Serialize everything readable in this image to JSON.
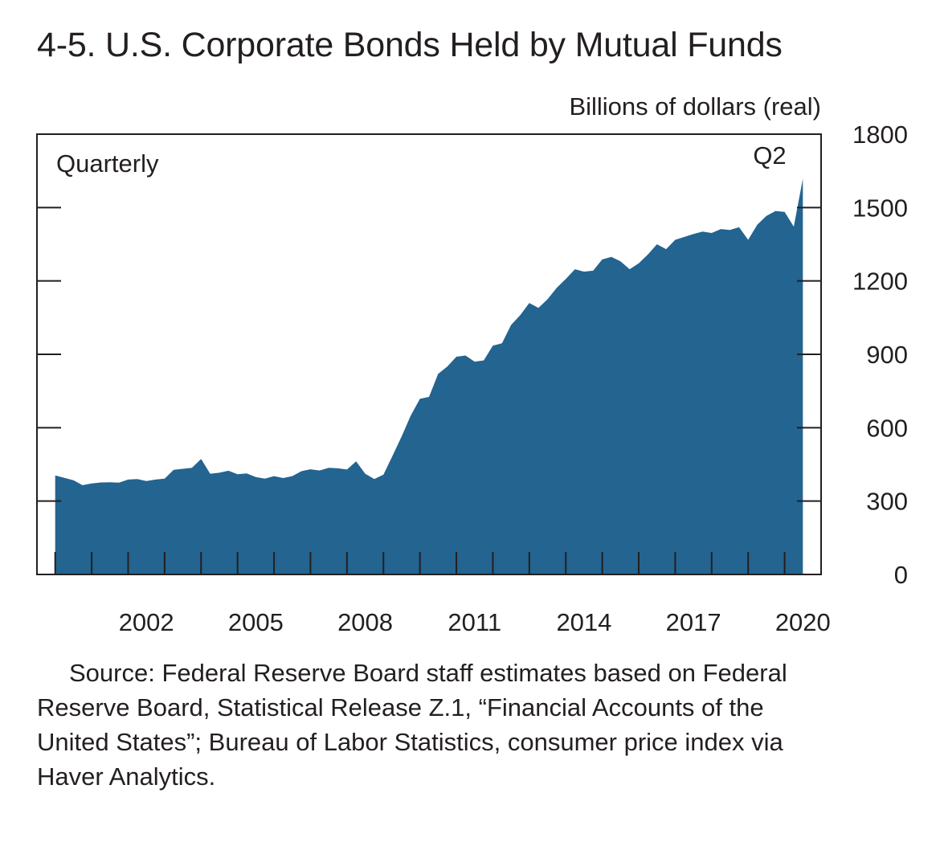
{
  "title": "4-5. U.S. Corporate Bonds Held by Mutual Funds",
  "source": "Source: Federal Reserve Board staff estimates based on Federal Reserve Board, Statistical Release Z.1, “Financial Accounts of the United States”; Bureau of Labor Statistics, consumer price index via Haver Analytics.",
  "colors": {
    "area": "#236490",
    "axis": "#231f20",
    "text": "#231f20"
  },
  "chart_data": {
    "type": "area",
    "ylabel": "Billions of dollars (real)",
    "frequency_label": "Quarterly",
    "end_label": "Q2",
    "ylim": [
      0,
      1800
    ],
    "yticks": [
      0,
      300,
      600,
      900,
      1200,
      1500,
      1800
    ],
    "xlim": [
      1999.5,
      2021.0
    ],
    "xtick_labels": [
      "2002",
      "2005",
      "2008",
      "2011",
      "2014",
      "2017",
      "2020"
    ],
    "grid": false,
    "series": [
      {
        "start_year": 2000,
        "start_quarter": 1,
        "end": "2020 Q2",
        "values": [
          405,
          395,
          385,
          365,
          372,
          376,
          377,
          375,
          388,
          390,
          382,
          388,
          392,
          428,
          432,
          436,
          472,
          412,
          416,
          424,
          410,
          413,
          398,
          392,
          402,
          394,
          402,
          422,
          430,
          425,
          436,
          434,
          429,
          462,
          412,
          390,
          408,
          485,
          565,
          650,
          718,
          726,
          820,
          850,
          890,
          895,
          870,
          875,
          935,
          945,
          1020,
          1060,
          1110,
          1090,
          1125,
          1172,
          1208,
          1248,
          1238,
          1242,
          1288,
          1298,
          1280,
          1248,
          1272,
          1308,
          1350,
          1330,
          1368,
          1380,
          1392,
          1402,
          1396,
          1412,
          1408,
          1420,
          1368,
          1430,
          1466,
          1486,
          1482,
          1422,
          1618
        ]
      }
    ]
  }
}
